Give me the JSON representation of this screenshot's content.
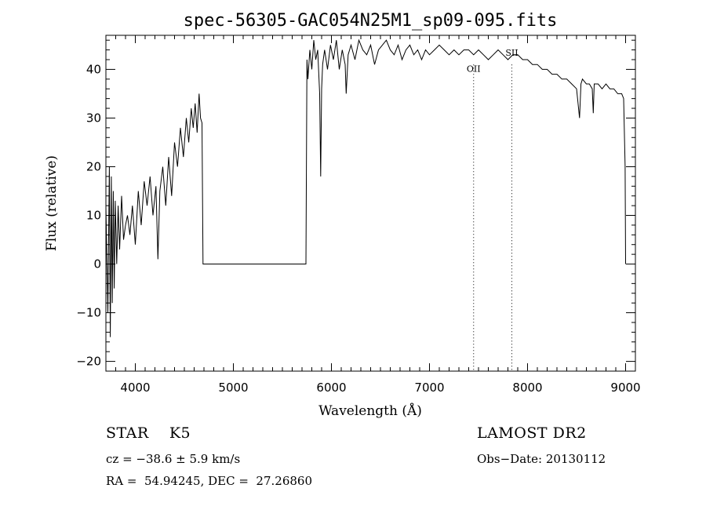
{
  "chart_data": {
    "type": "line",
    "title": "spec-56305-GAC054N25M1_sp09-095.fits",
    "xlabel": "Wavelength (Å)",
    "ylabel": "Flux (relative)",
    "xlim": [
      3700,
      9100
    ],
    "ylim": [
      -22,
      47
    ],
    "xticks": [
      4000,
      5000,
      6000,
      7000,
      8000,
      9000
    ],
    "yticks": [
      -20,
      -10,
      0,
      10,
      20,
      30,
      40
    ],
    "xtick_labels": [
      "4000",
      "5000",
      "6000",
      "7000",
      "8000",
      "9000"
    ],
    "ytick_labels": [
      "−20",
      "−10",
      "0",
      "10",
      "20",
      "30",
      "40"
    ],
    "grid": false,
    "lines": [
      {
        "label": "OII",
        "x": 7450
      },
      {
        "label": "SII",
        "x": 7840
      }
    ],
    "series": [
      {
        "x": [
          3700,
          3720,
          3735,
          3745,
          3755,
          3765,
          3775,
          3785,
          3795,
          3810,
          3825,
          3840,
          3860,
          3880,
          3900,
          3920,
          3945,
          3970,
          4000,
          4030,
          4060,
          4090,
          4120,
          4150,
          4180,
          4210,
          4230,
          4250,
          4280,
          4310,
          4340,
          4370,
          4400,
          4430,
          4460,
          4490,
          4520,
          4545,
          4570,
          4590,
          4610,
          4630,
          4650,
          4665,
          4680,
          4690,
          4700,
          5000,
          5400,
          5740,
          5750,
          5760,
          5780,
          5800,
          5820,
          5840,
          5860,
          5880,
          5890,
          5900,
          5910,
          5930,
          5960,
          5990,
          6020,
          6050,
          6080,
          6110,
          6140,
          6150,
          6170,
          6200,
          6240,
          6280,
          6320,
          6360,
          6400,
          6440,
          6480,
          6520,
          6560,
          6600,
          6640,
          6680,
          6720,
          6760,
          6800,
          6840,
          6880,
          6920,
          6960,
          7000,
          7050,
          7100,
          7150,
          7200,
          7250,
          7300,
          7350,
          7400,
          7450,
          7500,
          7550,
          7600,
          7650,
          7700,
          7750,
          7800,
          7850,
          7900,
          7950,
          8000,
          8050,
          8100,
          8150,
          8200,
          8250,
          8300,
          8350,
          8400,
          8450,
          8500,
          8530,
          8545,
          8560,
          8600,
          8630,
          8660,
          8670,
          8680,
          8720,
          8760,
          8800,
          8840,
          8880,
          8920,
          8960,
          8980,
          8995,
          9000
        ],
        "y": [
          12,
          -10,
          20,
          -15,
          18,
          -8,
          15,
          -5,
          13,
          0,
          12,
          3,
          14,
          5,
          8,
          10,
          6,
          12,
          4,
          15,
          8,
          17,
          12,
          18,
          10,
          16,
          1,
          15,
          20,
          12,
          22,
          14,
          25,
          20,
          28,
          22,
          30,
          25,
          32,
          28,
          33,
          27,
          35,
          30,
          29,
          0,
          0,
          0,
          0,
          0,
          42,
          38,
          44,
          40,
          46,
          42,
          44,
          35,
          18,
          36,
          41,
          44,
          40,
          45,
          42,
          46,
          40,
          44,
          41,
          35,
          43,
          45,
          42,
          46,
          44,
          43,
          45,
          41,
          44,
          45,
          46,
          44,
          43,
          45,
          42,
          44,
          45,
          43,
          44,
          42,
          44,
          43,
          44,
          45,
          44,
          43,
          44,
          43,
          44,
          44,
          43,
          44,
          43,
          42,
          43,
          44,
          43,
          42,
          43,
          43,
          42,
          42,
          41,
          41,
          40,
          40,
          39,
          39,
          38,
          38,
          37,
          36,
          30,
          37,
          38,
          37,
          37,
          36,
          31,
          37,
          37,
          36,
          37,
          36,
          36,
          35,
          35,
          34,
          20,
          0
        ]
      }
    ]
  },
  "info": {
    "object": "STAR    K5",
    "survey": "LAMOST DR2",
    "cz": "cz = −38.6 ± 5.9 km/s",
    "obs_date": "Obs−Date: 20130112",
    "coords": "RA =  54.94245, DEC =  27.26860"
  }
}
